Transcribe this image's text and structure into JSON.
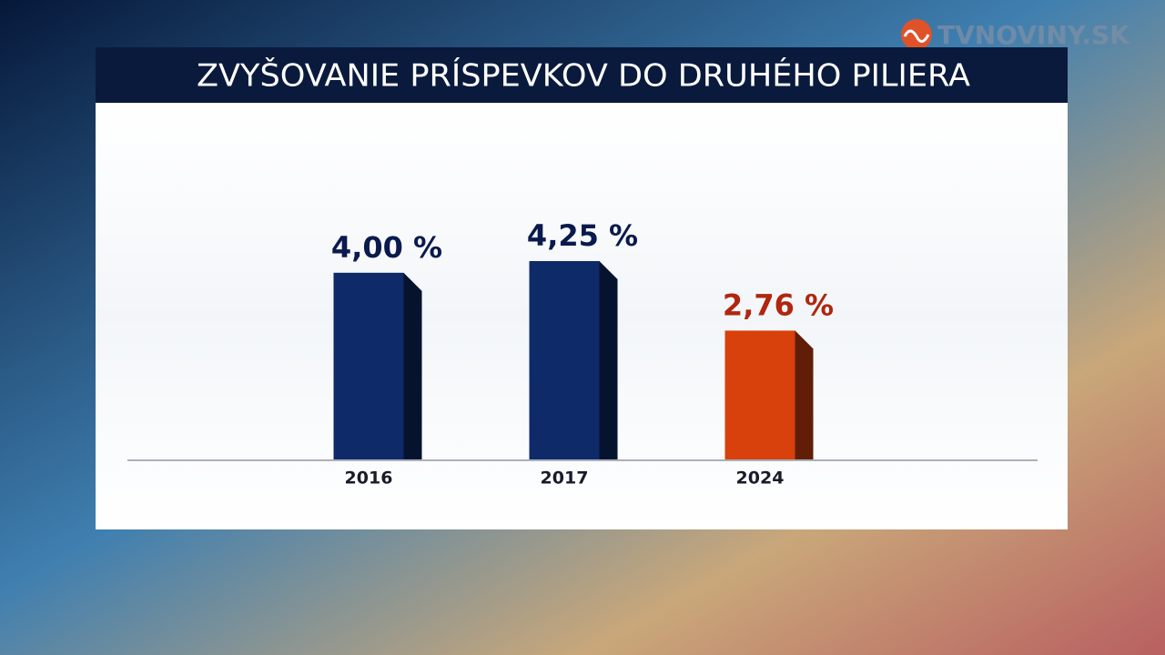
{
  "logo": "TVNOVINY.SK",
  "chart_data": {
    "type": "bar",
    "title": "ZVYŠOVANIE PRÍSPEVKOV DO DRUHÉHO PILIERA",
    "categories": [
      "2016",
      "2017",
      "2024"
    ],
    "values": [
      4.0,
      4.25,
      2.76
    ],
    "value_labels": [
      "4,00 %",
      "4,25 %",
      "2,76 %"
    ],
    "colors": [
      "#0e2a68",
      "#0e2a68",
      "#d8400c"
    ],
    "label_colors": [
      "#0b1a4d",
      "#0b1a4d",
      "#b0260e"
    ]
  }
}
